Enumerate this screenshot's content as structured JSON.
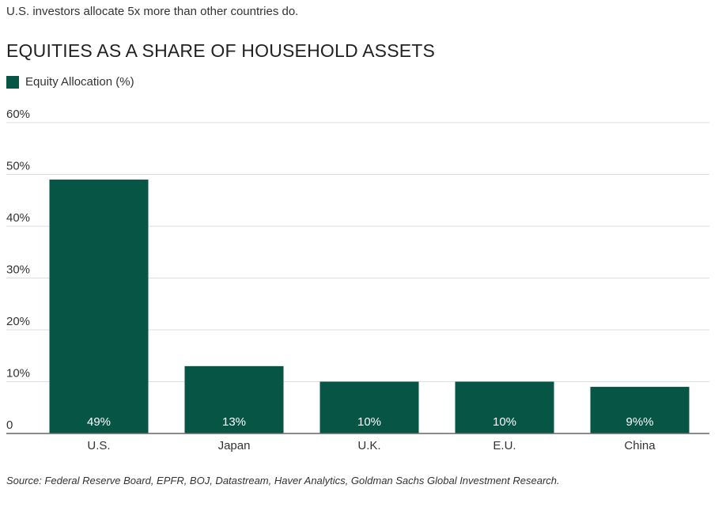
{
  "subtitle": "U.S. investors allocate 5x more than other countries do.",
  "title": "EQUITIES AS A SHARE OF HOUSEHOLD ASSETS",
  "source": "Source: Federal Reserve Board, EPFR, BOJ, Datastream, Haver Analytics, Goldman Sachs Global Investment Research.",
  "colors": {
    "bar": "#065545",
    "grid": "#dddddd",
    "axis": "#666666"
  },
  "chart_data": {
    "type": "bar",
    "title": "EQUITIES AS A SHARE OF HOUSEHOLD ASSETS",
    "categories": [
      "U.S.",
      "Japan",
      "U.K.",
      "E.U.",
      "China"
    ],
    "series": [
      {
        "name": "Equity Allocation (%)",
        "values": [
          49,
          13,
          10,
          10,
          9
        ]
      }
    ],
    "data_labels": [
      "49%",
      "13%",
      "10%",
      "10%",
      "9%%"
    ],
    "ylim": [
      0,
      60
    ],
    "yticks": [
      0,
      10,
      20,
      30,
      40,
      50,
      60
    ],
    "ytick_labels": [
      "0",
      "10%",
      "20%",
      "30%",
      "40%",
      "50%",
      "60%"
    ],
    "xlabel": "",
    "ylabel": "",
    "grid": true,
    "legend": "top-left"
  }
}
